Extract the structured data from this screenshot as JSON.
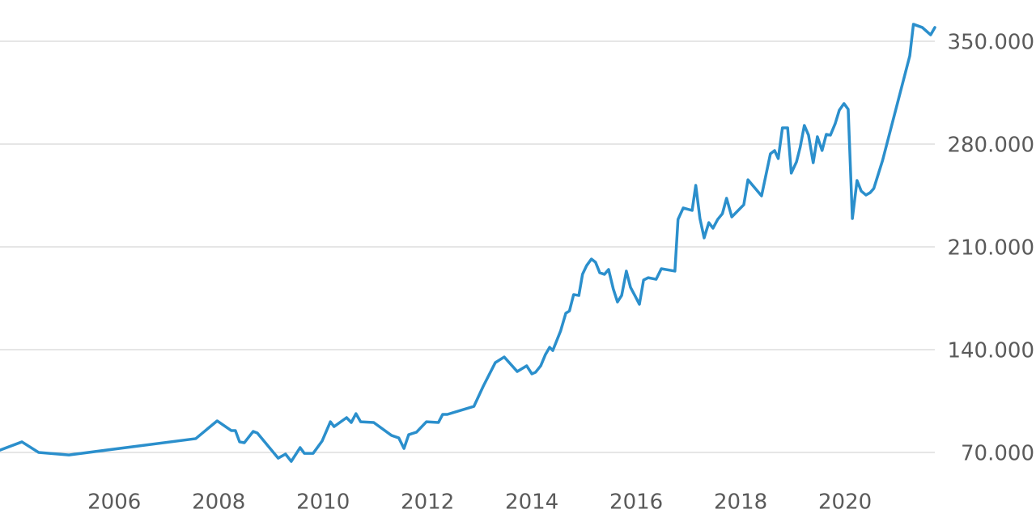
{
  "chart_data": {
    "type": "line",
    "color": "#2b8fcc",
    "grid": true,
    "xlim": [
      2003.81,
      2021.72
    ],
    "xticks": [
      2006,
      2008,
      2010,
      2012,
      2014,
      2016,
      2018,
      2020
    ],
    "ylim": [
      47400,
      378110
    ],
    "yticks": [
      {
        "value": 70000,
        "label": "70.000"
      },
      {
        "value": 140000,
        "label": "140.000"
      },
      {
        "value": 210000,
        "label": "210.000"
      },
      {
        "value": 280000,
        "label": "280.000"
      },
      {
        "value": 350000,
        "label": "350.000"
      }
    ],
    "x": [
      2003.81,
      2004.23,
      2004.55,
      2005.13,
      2007.56,
      2007.97,
      2008.24,
      2008.32,
      2008.4,
      2008.49,
      2008.66,
      2008.74,
      2009.14,
      2009.28,
      2009.39,
      2009.56,
      2009.64,
      2009.81,
      2009.98,
      2010.14,
      2010.21,
      2010.45,
      2010.54,
      2010.63,
      2010.72,
      2010.97,
      2011.31,
      2011.45,
      2011.55,
      2011.64,
      2011.79,
      2011.98,
      2012.21,
      2012.29,
      2012.38,
      2012.89,
      2013.07,
      2013.3,
      2013.47,
      2013.72,
      2013.9,
      2014.0,
      2014.07,
      2014.17,
      2014.26,
      2014.34,
      2014.4,
      2014.55,
      2014.65,
      2014.72,
      2014.8,
      2014.9,
      2014.97,
      2015.05,
      2015.14,
      2015.22,
      2015.3,
      2015.39,
      2015.47,
      2015.56,
      2015.64,
      2015.72,
      2015.81,
      2015.89,
      2015.98,
      2016.06,
      2016.14,
      2016.23,
      2016.38,
      2016.48,
      2016.74,
      2016.8,
      2016.9,
      2017.07,
      2017.14,
      2017.22,
      2017.3,
      2017.39,
      2017.47,
      2017.56,
      2017.65,
      2017.73,
      2017.83,
      2018.06,
      2018.14,
      2018.4,
      2018.57,
      2018.65,
      2018.72,
      2018.8,
      2018.9,
      2018.97,
      2019.07,
      2019.14,
      2019.22,
      2019.3,
      2019.39,
      2019.47,
      2019.56,
      2019.64,
      2019.72,
      2019.81,
      2019.89,
      2019.98,
      2020.06,
      2020.14,
      2020.23,
      2020.31,
      2020.4,
      2020.48,
      2020.55,
      2020.72,
      2021.24,
      2021.31,
      2021.48,
      2021.64,
      2021.72
    ],
    "values": [
      71600,
      77200,
      70000,
      68300,
      79400,
      91500,
      84900,
      84900,
      77200,
      76600,
      84300,
      83200,
      66100,
      68900,
      63900,
      73300,
      69400,
      69400,
      77700,
      90900,
      87600,
      93700,
      90400,
      96400,
      90900,
      90400,
      81600,
      79900,
      72700,
      82100,
      83800,
      90900,
      90400,
      95900,
      95900,
      101400,
      115200,
      131200,
      135000,
      125100,
      129000,
      123500,
      124600,
      129000,
      136700,
      141600,
      139400,
      152700,
      164800,
      166400,
      177500,
      176900,
      191300,
      197300,
      201700,
      199500,
      192400,
      191300,
      194600,
      181300,
      172500,
      176900,
      193500,
      182400,
      176400,
      170900,
      187400,
      189000,
      187900,
      195100,
      193500,
      228700,
      236500,
      234800,
      251900,
      229300,
      216100,
      226500,
      222700,
      228700,
      232600,
      243100,
      230400,
      238700,
      255700,
      244700,
      273400,
      275600,
      270100,
      291000,
      291000,
      260200,
      267900,
      277800,
      292700,
      286100,
      267300,
      285000,
      275600,
      286600,
      286100,
      293800,
      303100,
      307600,
      303700,
      229300,
      255200,
      248000,
      245300,
      246900,
      249700,
      269000,
      340100,
      361600,
      359400,
      354400,
      359400
    ]
  }
}
